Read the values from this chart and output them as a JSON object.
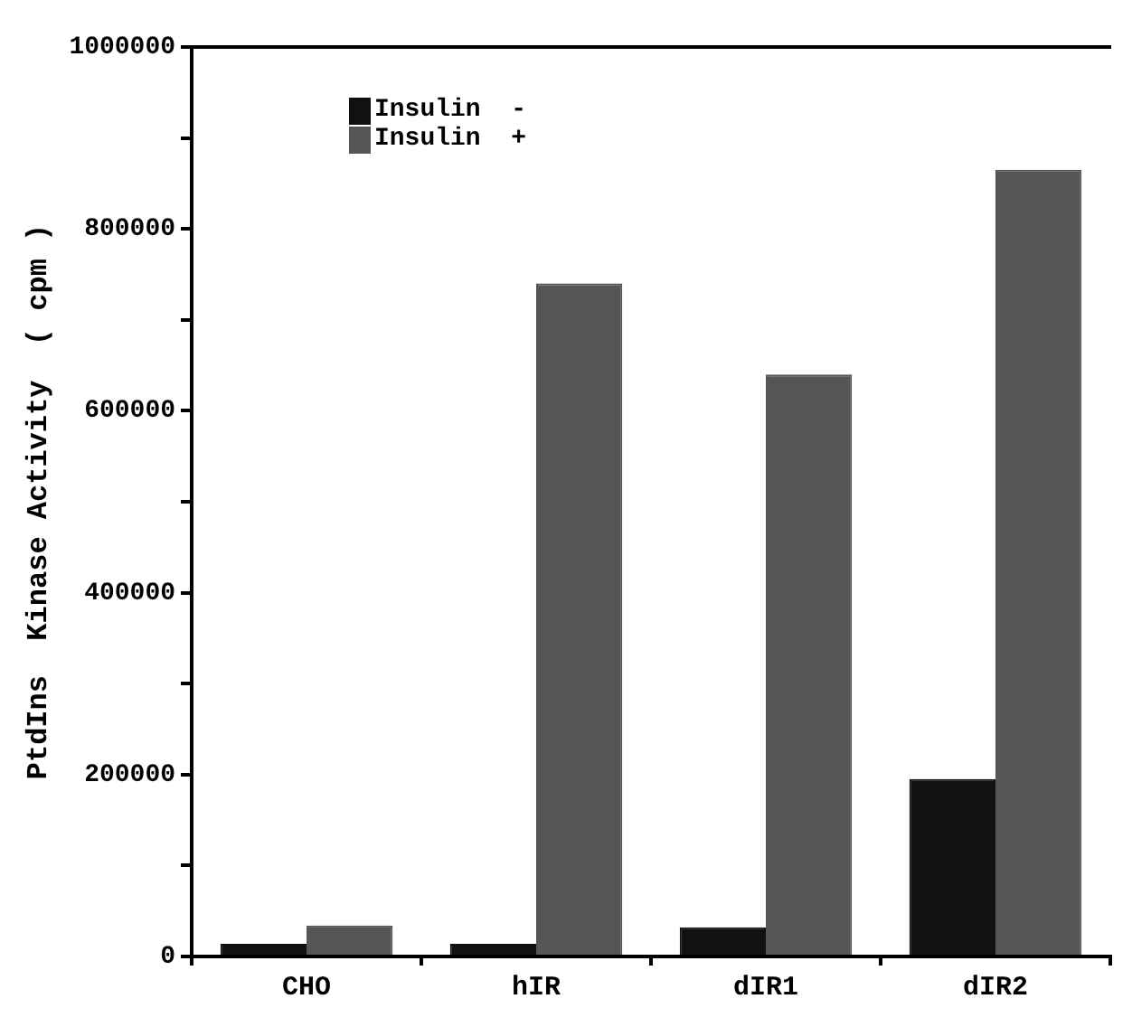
{
  "chart_data": {
    "type": "bar",
    "ylabel": "PtdIns  Kinase Activity  ( cpm )",
    "categories": [
      "CHO",
      "hIR",
      "dIR1",
      "dIR2"
    ],
    "series": [
      {
        "name": "Insulin  -",
        "color": "#111111",
        "values": [
          14000,
          14000,
          32000,
          195000
        ]
      },
      {
        "name": "Insulin  +",
        "color": "#555555",
        "values": [
          34000,
          740000,
          640000,
          865000
        ]
      }
    ],
    "ylim": [
      0,
      1000000
    ],
    "yticks": [
      0,
      {
        "value": 100000,
        "label": null
      },
      200000,
      {
        "value": 300000,
        "label": null
      },
      400000,
      {
        "value": 500000,
        "label": null
      },
      600000,
      {
        "value": 700000,
        "label": null
      },
      800000,
      {
        "value": 900000,
        "label": null
      },
      1000000
    ],
    "grid": false,
    "legend": "top left"
  }
}
